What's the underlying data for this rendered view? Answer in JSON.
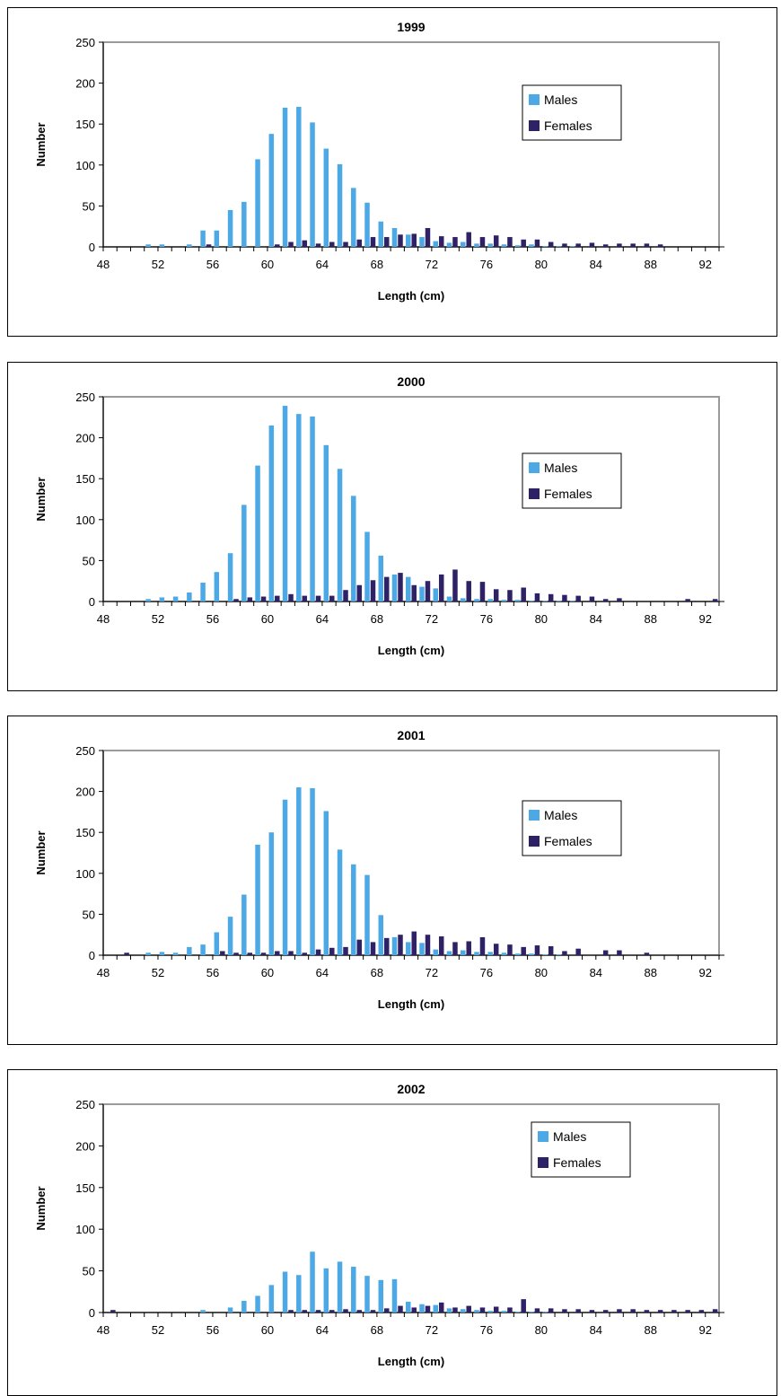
{
  "colors": {
    "males": "#4da9e5",
    "females": "#2e2166",
    "plot_border": "#9a9a9a"
  },
  "chart_data": [
    {
      "type": "bar",
      "title": "1999",
      "xlabel": "Length (cm)",
      "ylabel": "Number",
      "ylim": [
        0,
        250
      ],
      "yticks": [
        0,
        50,
        100,
        150,
        200,
        250
      ],
      "xticks": [
        48,
        52,
        56,
        60,
        64,
        68,
        72,
        76,
        80,
        84,
        88,
        92
      ],
      "legend_position": "upper-right",
      "x": [
        48,
        49,
        50,
        51,
        52,
        53,
        54,
        55,
        56,
        57,
        58,
        59,
        60,
        61,
        62,
        63,
        64,
        65,
        66,
        67,
        68,
        69,
        70,
        71,
        72,
        73,
        74,
        75,
        76,
        77,
        78,
        79,
        80,
        81,
        82,
        83,
        84,
        85,
        86,
        87,
        88,
        89,
        90,
        91,
        92
      ],
      "series": [
        {
          "name": "Males",
          "values": [
            0,
            0,
            0,
            3,
            3,
            0,
            3,
            20,
            20,
            45,
            55,
            107,
            138,
            170,
            171,
            152,
            120,
            101,
            72,
            54,
            31,
            23,
            15,
            12,
            7,
            5,
            6,
            4,
            4,
            3,
            2,
            3,
            1,
            1,
            1,
            0,
            0,
            0,
            0,
            0,
            0,
            0,
            0,
            0,
            0
          ]
        },
        {
          "name": "Females",
          "values": [
            0,
            0,
            0,
            0,
            0,
            0,
            0,
            3,
            0,
            0,
            0,
            0,
            3,
            6,
            8,
            4,
            6,
            6,
            9,
            12,
            12,
            15,
            16,
            23,
            13,
            12,
            18,
            12,
            14,
            12,
            9,
            9,
            6,
            4,
            4,
            5,
            3,
            4,
            4,
            4,
            3,
            0,
            0,
            0,
            0
          ]
        }
      ]
    },
    {
      "type": "bar",
      "title": "2000",
      "xlabel": "Length (cm)",
      "ylabel": "Number",
      "ylim": [
        0,
        250
      ],
      "yticks": [
        0,
        50,
        100,
        150,
        200,
        250
      ],
      "xticks": [
        48,
        52,
        56,
        60,
        64,
        68,
        72,
        76,
        80,
        84,
        88,
        92
      ],
      "legend_position": "upper-right",
      "x": [
        48,
        49,
        50,
        51,
        52,
        53,
        54,
        55,
        56,
        57,
        58,
        59,
        60,
        61,
        62,
        63,
        64,
        65,
        66,
        67,
        68,
        69,
        70,
        71,
        72,
        73,
        74,
        75,
        76,
        77,
        78,
        79,
        80,
        81,
        82,
        83,
        84,
        85,
        86,
        87,
        88,
        89,
        90,
        91,
        92
      ],
      "series": [
        {
          "name": "Males",
          "values": [
            0,
            0,
            0,
            3,
            5,
            6,
            11,
            23,
            36,
            59,
            118,
            166,
            215,
            239,
            229,
            226,
            191,
            162,
            129,
            85,
            56,
            33,
            30,
            18,
            16,
            6,
            4,
            3,
            3,
            2,
            2,
            1,
            1,
            1,
            1,
            0,
            0,
            0,
            0,
            0,
            0,
            0,
            0,
            0,
            0
          ]
        },
        {
          "name": "Females",
          "values": [
            0,
            0,
            0,
            0,
            0,
            0,
            0,
            0,
            0,
            3,
            5,
            6,
            7,
            9,
            7,
            7,
            7,
            14,
            20,
            26,
            30,
            35,
            20,
            25,
            33,
            39,
            25,
            24,
            15,
            14,
            17,
            10,
            9,
            8,
            7,
            6,
            3,
            4,
            0,
            0,
            0,
            0,
            3,
            0,
            3
          ]
        }
      ]
    },
    {
      "type": "bar",
      "title": "2001",
      "xlabel": "Length (cm)",
      "ylabel": "Number",
      "ylim": [
        0,
        250
      ],
      "yticks": [
        0,
        50,
        100,
        150,
        200,
        250
      ],
      "xticks": [
        48,
        52,
        56,
        60,
        64,
        68,
        72,
        76,
        80,
        84,
        88,
        92
      ],
      "legend_position": "upper-right",
      "x": [
        48,
        49,
        50,
        51,
        52,
        53,
        54,
        55,
        56,
        57,
        58,
        59,
        60,
        61,
        62,
        63,
        64,
        65,
        66,
        67,
        68,
        69,
        70,
        71,
        72,
        73,
        74,
        75,
        76,
        77,
        78,
        79,
        80,
        81,
        82,
        83,
        84,
        85,
        86,
        87,
        88,
        89,
        90,
        91,
        92
      ],
      "series": [
        {
          "name": "Males",
          "values": [
            0,
            0,
            0,
            3,
            4,
            3,
            10,
            13,
            28,
            47,
            74,
            135,
            150,
            190,
            205,
            204,
            176,
            129,
            111,
            98,
            49,
            22,
            16,
            15,
            7,
            5,
            6,
            4,
            4,
            3,
            2,
            2,
            1,
            1,
            0,
            0,
            0,
            0,
            0,
            0,
            0,
            0,
            0,
            0,
            0
          ]
        },
        {
          "name": "Females",
          "values": [
            0,
            3,
            0,
            0,
            0,
            0,
            0,
            0,
            5,
            3,
            3,
            3,
            5,
            5,
            3,
            7,
            9,
            10,
            19,
            16,
            21,
            25,
            29,
            25,
            23,
            16,
            17,
            22,
            14,
            13,
            10,
            12,
            11,
            5,
            8,
            0,
            6,
            6,
            0,
            3,
            0,
            0,
            0,
            0,
            0
          ]
        }
      ]
    },
    {
      "type": "bar",
      "title": "2002",
      "xlabel": "Length (cm)",
      "ylabel": "Number",
      "ylim": [
        0,
        250
      ],
      "yticks": [
        0,
        50,
        100,
        150,
        200,
        250
      ],
      "xticks": [
        48,
        52,
        56,
        60,
        64,
        68,
        72,
        76,
        80,
        84,
        88,
        92
      ],
      "legend_position": "upper-right",
      "x": [
        48,
        49,
        50,
        51,
        52,
        53,
        54,
        55,
        56,
        57,
        58,
        59,
        60,
        61,
        62,
        63,
        64,
        65,
        66,
        67,
        68,
        69,
        70,
        71,
        72,
        73,
        74,
        75,
        76,
        77,
        78,
        79,
        80,
        81,
        82,
        83,
        84,
        85,
        86,
        87,
        88,
        89,
        90,
        91,
        92
      ],
      "series": [
        {
          "name": "Males",
          "values": [
            0,
            0,
            0,
            0,
            0,
            0,
            0,
            3,
            0,
            6,
            14,
            20,
            33,
            49,
            45,
            73,
            53,
            61,
            55,
            44,
            39,
            40,
            13,
            10,
            9,
            5,
            4,
            3,
            2,
            2,
            1,
            1,
            1,
            0,
            0,
            0,
            0,
            0,
            0,
            0,
            0,
            0,
            0,
            0,
            0
          ]
        },
        {
          "name": "Females",
          "values": [
            3,
            0,
            0,
            0,
            0,
            0,
            0,
            0,
            0,
            0,
            0,
            0,
            0,
            3,
            3,
            3,
            3,
            4,
            3,
            3,
            5,
            8,
            6,
            8,
            12,
            6,
            8,
            6,
            7,
            6,
            16,
            5,
            5,
            4,
            4,
            3,
            3,
            4,
            4,
            3,
            3,
            3,
            3,
            3,
            4
          ]
        }
      ]
    }
  ]
}
